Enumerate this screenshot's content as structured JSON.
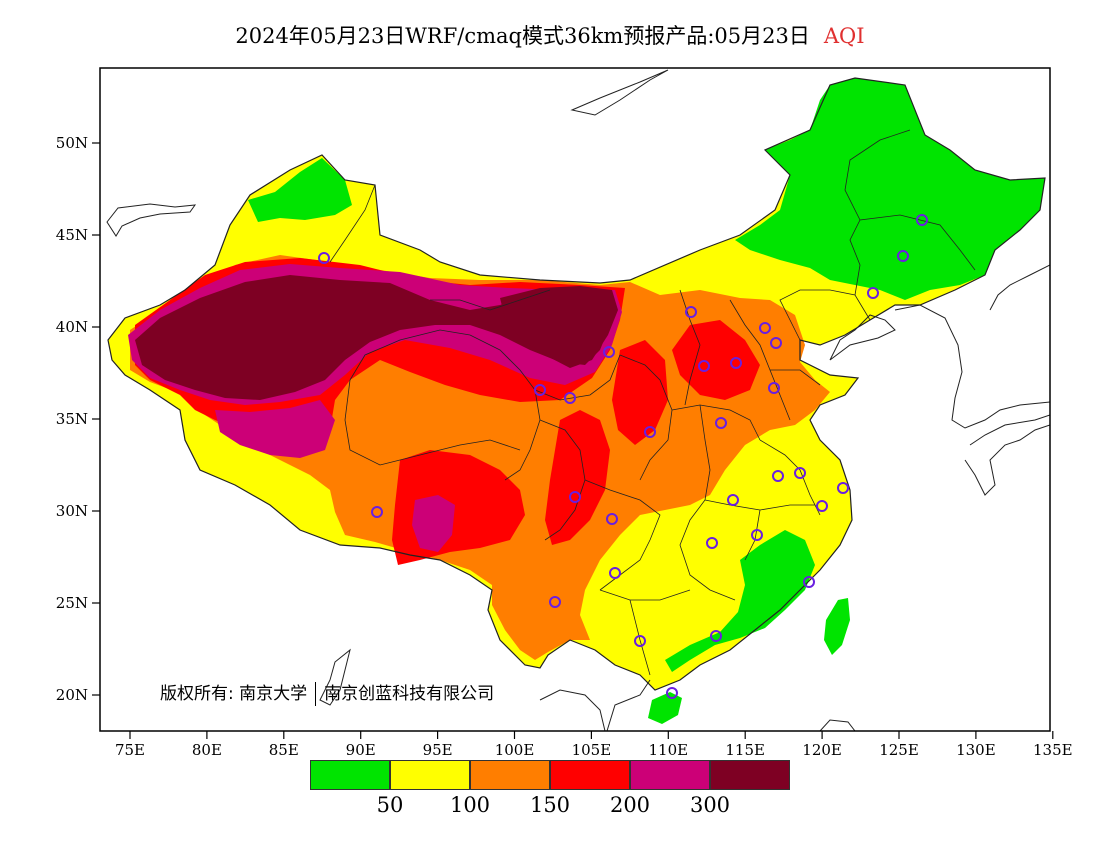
{
  "title": {
    "main": "2024年05月23日WRF/cmaq模式36km预报产品:05月23日",
    "variable": "AQI",
    "variable_color": "#e03030"
  },
  "copyright": {
    "holder1": "版权所有: 南京大学",
    "holder2": "南京创蓝科技有限公司"
  },
  "axes": {
    "x_ticks": [
      "75E",
      "80E",
      "85E",
      "90E",
      "95E",
      "100E",
      "105E",
      "110E",
      "115E",
      "120E",
      "125E",
      "130E",
      "135E"
    ],
    "y_ticks": [
      "20N",
      "25N",
      "30N",
      "35N",
      "40N",
      "45N",
      "50N"
    ]
  },
  "legend": {
    "colors": [
      "#00e400",
      "#ffff00",
      "#ff7e00",
      "#ff0000",
      "#cc0077",
      "#7e0023"
    ],
    "labels": [
      "50",
      "100",
      "150",
      "200",
      "300"
    ]
  },
  "colors": {
    "good": "#00e400",
    "moderate": "#ffff00",
    "sensitive": "#ff7e00",
    "unhealthy": "#ff0000",
    "very_unhealthy": "#cc0077",
    "hazardous": "#7e0023",
    "station_marker": "#6a1fe0"
  }
}
